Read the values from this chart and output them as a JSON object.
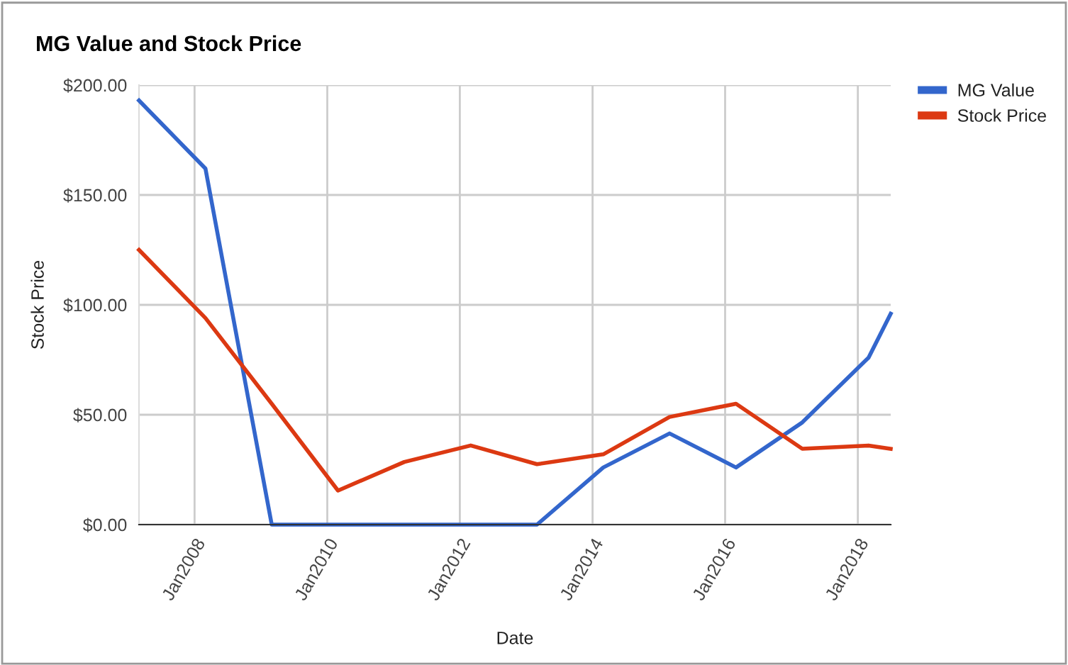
{
  "chart_data": {
    "type": "line",
    "title": "MG Value and Stock Price",
    "xlabel": "Date",
    "ylabel": "Stock Price",
    "x": [
      "2007-03",
      "2008-03",
      "2009-03",
      "2010-03",
      "2011-03",
      "2012-03",
      "2013-03",
      "2014-03",
      "2015-03",
      "2016-03",
      "2017-03",
      "2018-03",
      "2018-07"
    ],
    "series": [
      {
        "name": "MG Value",
        "color": "#3366cc",
        "values": [
          193,
          162,
          0,
          0,
          0,
          0,
          0,
          26,
          41.5,
          26,
          46.5,
          76,
          96
        ]
      },
      {
        "name": "Stock Price",
        "color": "#dc3912",
        "values": [
          125,
          94,
          55,
          15.5,
          28.5,
          36,
          27.5,
          32,
          49,
          55,
          34.5,
          36,
          34.5
        ]
      }
    ],
    "xlim": [
      "2007-03",
      "2018-07"
    ],
    "xticks": [
      {
        "value": "2008-01",
        "label": "Jan2008"
      },
      {
        "value": "2010-01",
        "label": "Jan2010"
      },
      {
        "value": "2012-01",
        "label": "Jan2012"
      },
      {
        "value": "2014-01",
        "label": "Jan2014"
      },
      {
        "value": "2016-01",
        "label": "Jan2016"
      },
      {
        "value": "2018-01",
        "label": "Jan2018"
      }
    ],
    "ylim": [
      0,
      200
    ],
    "yticks": [
      {
        "value": 0,
        "label": "$0.00"
      },
      {
        "value": 50,
        "label": "$50.00"
      },
      {
        "value": 100,
        "label": "$100.00"
      },
      {
        "value": 150,
        "label": "$150.00"
      },
      {
        "value": 200,
        "label": "$200.00"
      }
    ],
    "grid": true,
    "legend": "top right",
    "marker": "none",
    "line_style": "solid"
  }
}
